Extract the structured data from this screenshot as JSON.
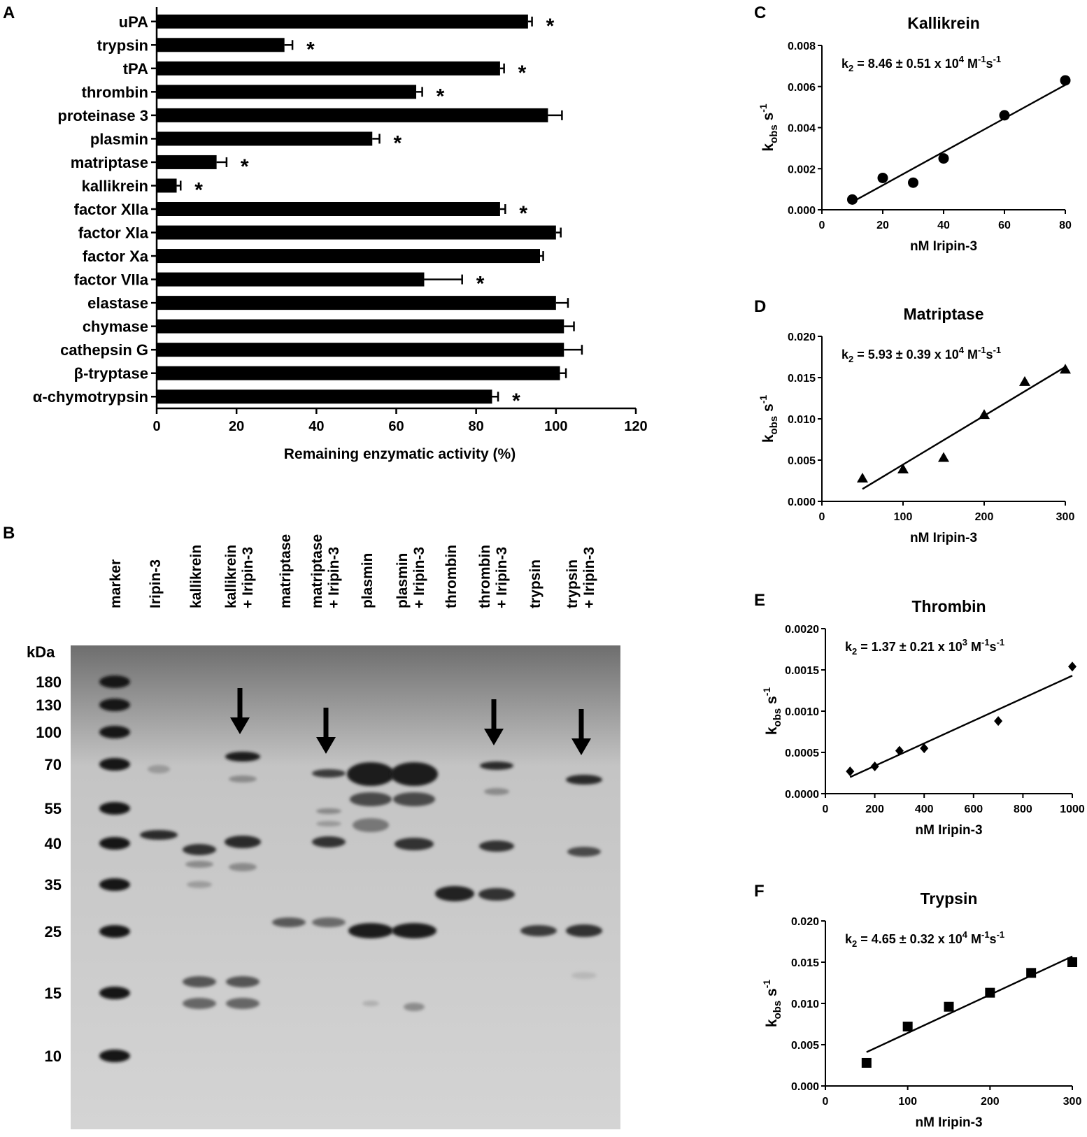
{
  "panels": {
    "A": "A",
    "B": "B",
    "C": "C",
    "D": "D",
    "E": "E",
    "F": "F"
  },
  "chart_data": [
    {
      "panel": "A",
      "type": "bar",
      "orientation": "horizontal",
      "categories": [
        "uPA",
        "trypsin",
        "tPA",
        "thrombin",
        "proteinase 3",
        "plasmin",
        "matriptase",
        "kallikrein",
        "factor XIIa",
        "factor XIa",
        "factor Xa",
        "factor VIIa",
        "elastase",
        "chymase",
        "cathepsin G",
        "β-tryptase",
        "α-chymotrypsin"
      ],
      "values": [
        93,
        32,
        86,
        65,
        98,
        54,
        15,
        5,
        86,
        100,
        96,
        67,
        100,
        102,
        102,
        101,
        84
      ],
      "errors": [
        1,
        2,
        1,
        1.5,
        3.5,
        1.8,
        2.5,
        1,
        1.3,
        1.2,
        0.8,
        9.5,
        3,
        2.5,
        4.5,
        1.5,
        1.5
      ],
      "significant": [
        true,
        true,
        true,
        true,
        false,
        true,
        true,
        true,
        true,
        false,
        false,
        true,
        false,
        false,
        false,
        false,
        true
      ],
      "significance_marker": "*",
      "xlabel": "Remaining enzymatic activity (%)",
      "xlim": [
        0,
        120
      ],
      "xticks": [
        "0",
        "20",
        "40",
        "60",
        "80",
        "100",
        "120"
      ],
      "grid": false,
      "bar_color": "#000000"
    },
    {
      "panel": "C",
      "type": "scatter",
      "title": "Kallikrein",
      "annotation": {
        "base": "k",
        "sub": "2",
        "value": " = 8.46 ± 0.51 x 10",
        "exp": "4",
        "unit1": " M",
        "unit1_exp": "-1",
        "unit2": "s",
        "unit2_exp": "-1"
      },
      "x": [
        10,
        20,
        30,
        40,
        60,
        80
      ],
      "y": [
        0.0005,
        0.00155,
        0.00132,
        0.0025,
        0.0046,
        0.0063
      ],
      "fit": {
        "x": [
          10,
          80
        ],
        "y": [
          0.00038,
          0.00608
        ]
      },
      "marker": "circle",
      "xlim": [
        0,
        80
      ],
      "ylim": [
        0,
        0.008
      ],
      "xticks": [
        "0",
        "20",
        "40",
        "60",
        "80"
      ],
      "yticks": [
        "0.000",
        "0.002",
        "0.004",
        "0.006",
        "0.008"
      ],
      "xlabel": "nM Iripin-3",
      "ylabel": {
        "base": "k",
        "sub": "obs",
        "unit": " s",
        "unit_exp": "-1"
      }
    },
    {
      "panel": "D",
      "type": "scatter",
      "title": "Matriptase",
      "annotation": {
        "base": "k",
        "sub": "2",
        "value": " = 5.93 ± 0.39 x 10",
        "exp": "4",
        "unit1": " M",
        "unit1_exp": "-1",
        "unit2": "s",
        "unit2_exp": "-1"
      },
      "x": [
        50,
        100,
        150,
        200,
        250,
        300
      ],
      "y": [
        0.0028,
        0.0039,
        0.0053,
        0.0105,
        0.0145,
        0.016
      ],
      "fit": {
        "x": [
          50,
          300
        ],
        "y": [
          0.0015,
          0.0163
        ]
      },
      "marker": "triangle",
      "xlim": [
        0,
        300
      ],
      "ylim": [
        0,
        0.02
      ],
      "xticks": [
        "0",
        "100",
        "200",
        "300"
      ],
      "yticks": [
        "0.000",
        "0.005",
        "0.010",
        "0.015",
        "0.020"
      ],
      "xlabel": "nM Iripin-3",
      "ylabel": {
        "base": "k",
        "sub": "obs",
        "unit": " s",
        "unit_exp": "-1"
      }
    },
    {
      "panel": "E",
      "type": "scatter",
      "title": "Thrombin",
      "annotation": {
        "base": "k",
        "sub": "2",
        "value": " = 1.37 ± 0.21 x 10",
        "exp": "3",
        "unit1": " M",
        "unit1_exp": "-1",
        "unit2": "s",
        "unit2_exp": "-1"
      },
      "x": [
        100,
        200,
        300,
        400,
        700,
        1000
      ],
      "y": [
        0.00027,
        0.00033,
        0.00052,
        0.00055,
        0.00088,
        0.00154
      ],
      "fit": {
        "x": [
          100,
          1000
        ],
        "y": [
          0.0002,
          0.00143
        ]
      },
      "marker": "diamond",
      "xlim": [
        0,
        1000
      ],
      "ylim": [
        0,
        0.002
      ],
      "xticks": [
        "0",
        "200",
        "400",
        "600",
        "800",
        "1000"
      ],
      "yticks": [
        "0.0000",
        "0.0005",
        "0.0010",
        "0.0015",
        "0.0020"
      ],
      "xlabel": "nM Iripin-3",
      "ylabel": {
        "base": "k",
        "sub": "obs",
        "unit": " s",
        "unit_exp": "-1"
      }
    },
    {
      "panel": "F",
      "type": "scatter",
      "title": "Trypsin",
      "annotation": {
        "base": "k",
        "sub": "2",
        "value": " = 4.65 ± 0.32 x 10",
        "exp": "4",
        "unit1": " M",
        "unit1_exp": "-1",
        "unit2": "s",
        "unit2_exp": "-1"
      },
      "x": [
        50,
        100,
        150,
        200,
        250,
        300
      ],
      "y": [
        0.0028,
        0.0072,
        0.0096,
        0.0113,
        0.0137,
        0.015
      ],
      "fit": {
        "x": [
          50,
          300
        ],
        "y": [
          0.0041,
          0.0157
        ]
      },
      "marker": "square",
      "xlim": [
        0,
        300
      ],
      "ylim": [
        0,
        0.02
      ],
      "xticks": [
        "0",
        "100",
        "200",
        "300"
      ],
      "yticks": [
        "0.000",
        "0.005",
        "0.010",
        "0.015",
        "0.020"
      ],
      "xlabel": "nM Iripin-3",
      "ylabel": {
        "base": "k",
        "sub": "obs",
        "unit": " s",
        "unit_exp": "-1"
      }
    }
  ],
  "gel": {
    "panel": "B",
    "unit_label": "kDa",
    "lanes": [
      [
        "marker"
      ],
      [
        "Iripin-3"
      ],
      [
        "kallikrein"
      ],
      [
        "kallikrein",
        "+ Iripin-3"
      ],
      [
        "matriptase"
      ],
      [
        "matriptase",
        "+ Iripin-3"
      ],
      [
        "plasmin"
      ],
      [
        "plasmin",
        "+ Iripin-3"
      ],
      [
        "thrombin"
      ],
      [
        "thrombin",
        "+ Iripin-3"
      ],
      [
        "trypsin"
      ],
      [
        "trypsin",
        "+ Iripin-3"
      ]
    ],
    "mw_markers": [
      "180",
      "130",
      "100",
      "70",
      "55",
      "40",
      "35",
      "25",
      "15",
      "10"
    ],
    "complex_arrows": [
      3,
      5,
      9,
      11
    ]
  }
}
